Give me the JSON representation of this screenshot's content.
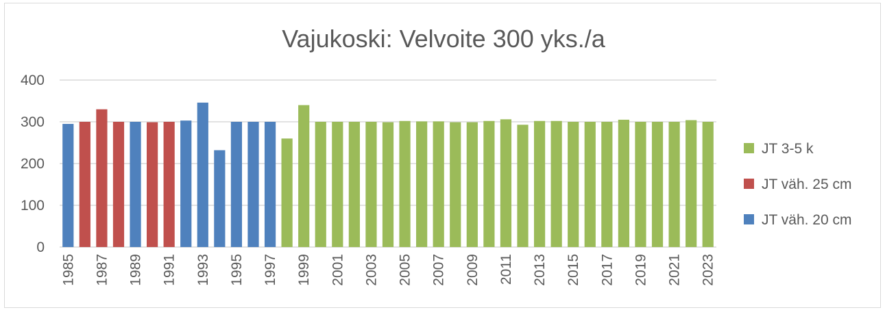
{
  "chart_data": {
    "type": "bar",
    "title": "Vajukoski: Velvoite 300 yks./a",
    "xlabel": "",
    "ylabel": "",
    "ylim": [
      0,
      400
    ],
    "yticks": [
      "0",
      "100",
      "200",
      "300",
      "400"
    ],
    "grid": true,
    "legend_position": "right",
    "categories": [
      "1985",
      "1986",
      "1987",
      "1988",
      "1989",
      "1990",
      "1991",
      "1992",
      "1993",
      "1994",
      "1995",
      "1996",
      "1997",
      "1998",
      "1999",
      "2000",
      "2001",
      "2002",
      "2003",
      "2004",
      "2005",
      "2006",
      "2007",
      "2008",
      "2009",
      "2010",
      "2011",
      "2012",
      "2013",
      "2014",
      "2015",
      "2016",
      "2017",
      "2018",
      "2019",
      "2020",
      "2021",
      "2022",
      "2023"
    ],
    "category_tick_labels": [
      "1985",
      "",
      "1987",
      "",
      "1989",
      "",
      "1991",
      "",
      "1993",
      "",
      "1995",
      "",
      "1997",
      "",
      "1999",
      "",
      "2001",
      "",
      "2003",
      "",
      "2005",
      "",
      "2007",
      "",
      "2009",
      "",
      "2011",
      "",
      "2013",
      "",
      "2015",
      "",
      "2017",
      "",
      "2019",
      "",
      "2021",
      "",
      "2023"
    ],
    "values": [
      295,
      300,
      330,
      300,
      300,
      299,
      300,
      303,
      346,
      232,
      300,
      300,
      300,
      260,
      340,
      300,
      300,
      300,
      300,
      299,
      302,
      301,
      301,
      299,
      299,
      302,
      306,
      293,
      302,
      302,
      300,
      300,
      300,
      305,
      300,
      300,
      300,
      304,
      300
    ],
    "series_index": [
      "blue",
      "red",
      "red",
      "red",
      "blue",
      "red",
      "red",
      "blue",
      "blue",
      "blue",
      "blue",
      "blue",
      "blue",
      "green",
      "green",
      "green",
      "green",
      "green",
      "green",
      "green",
      "green",
      "green",
      "green",
      "green",
      "green",
      "green",
      "green",
      "green",
      "green",
      "green",
      "green",
      "green",
      "green",
      "green",
      "green",
      "green",
      "green",
      "green",
      "green"
    ],
    "series": [
      {
        "key": "green",
        "name": "JT 3-5 k",
        "color": "#9bbb59"
      },
      {
        "key": "red",
        "name": "JT väh. 25 cm",
        "color": "#c0504d"
      },
      {
        "key": "blue",
        "name": "JT väh. 20 cm",
        "color": "#4f81bd"
      }
    ],
    "colors": {
      "grid": "#d9d9d9",
      "text": "#595959",
      "border": "#d9d9d9"
    }
  }
}
